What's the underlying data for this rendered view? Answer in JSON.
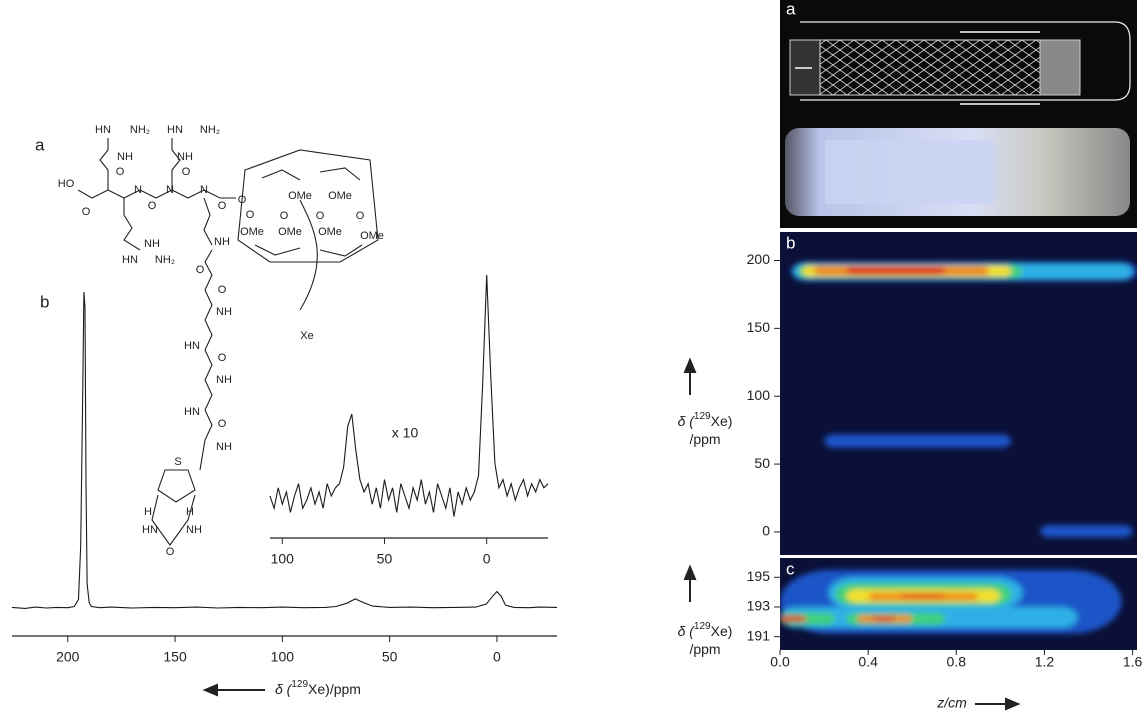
{
  "structure": {
    "panel_label": "a",
    "labels": [
      "HN",
      "NH₂",
      "HN",
      "NH₂",
      "NH",
      "NH",
      "HO",
      "O",
      "O",
      "N",
      "O",
      "N",
      "O",
      "N",
      "O",
      "NH",
      "HN",
      "NH₂",
      "NH",
      "O",
      "O",
      "NH",
      "HN",
      "O",
      "NH",
      "HN",
      "O",
      "NH",
      "S",
      "H",
      "H",
      "HN",
      "NH",
      "O",
      "O",
      "OMe",
      "OMe",
      "O",
      "O",
      "O",
      "O",
      "OMe",
      "OMe",
      "OMe",
      "OMe",
      "Xe"
    ]
  },
  "photo": {
    "panel_label": "a"
  },
  "chart_data": [
    {
      "type": "line",
      "panel_label": "b",
      "color": "#1a1a1a",
      "xlim": [
        226,
        -28
      ],
      "ylim": [
        0,
        100
      ],
      "xticks": [
        200,
        150,
        100,
        50,
        0
      ],
      "xlabel": [
        "δ (",
        "129",
        "Xe)/ppm"
      ],
      "x": [
        226,
        220,
        215,
        210,
        205,
        200,
        197,
        195,
        194,
        193,
        192.5,
        192,
        191.5,
        191,
        190,
        189,
        185,
        180,
        170,
        160,
        150,
        140,
        130,
        120,
        110,
        100,
        90,
        80,
        75,
        70,
        66,
        62,
        58,
        50,
        40,
        30,
        20,
        10,
        5,
        2,
        0,
        -2,
        -4,
        -8,
        -15,
        -20,
        -28
      ],
      "values": [
        0.5,
        0.2,
        0.6,
        0.3,
        0.5,
        0.4,
        0.8,
        3,
        20,
        70,
        100,
        95,
        40,
        8,
        2,
        0.8,
        0.4,
        0.6,
        0.3,
        0.5,
        0.4,
        0.6,
        0.3,
        0.5,
        0.4,
        0.6,
        0.4,
        0.5,
        0.8,
        1.8,
        3.2,
        2,
        0.9,
        0.5,
        0.6,
        0.4,
        0.5,
        0.6,
        1.5,
        4,
        5.5,
        4,
        1.2,
        0.5,
        0.4,
        0.6,
        0.5
      ]
    },
    {
      "type": "line",
      "annotation": "x 10",
      "color": "#1a1a1a",
      "xlim": [
        106,
        -30
      ],
      "ylim": [
        -7.3,
        56.2
      ],
      "xticks": [
        100,
        50,
        0
      ],
      "x": [
        106,
        104,
        102,
        100,
        98,
        96,
        94,
        92,
        90,
        88,
        86,
        84,
        82,
        80,
        78,
        76,
        74,
        72,
        70,
        68,
        66,
        64,
        62,
        60,
        58,
        56,
        54,
        52,
        50,
        48,
        46,
        44,
        42,
        40,
        38,
        36,
        34,
        32,
        30,
        28,
        26,
        24,
        22,
        20,
        18,
        16,
        14,
        12,
        10,
        8,
        6,
        4,
        2,
        0,
        -2,
        -4,
        -6,
        -8,
        -10,
        -12,
        -14,
        -16,
        -18,
        -20,
        -22,
        -24,
        -26,
        -28,
        -30
      ],
      "values": [
        1,
        -2,
        3,
        -1,
        2,
        -3,
        1,
        4,
        -2,
        0,
        3,
        -1,
        2,
        -2,
        4,
        1,
        3,
        4,
        8,
        18,
        21,
        12,
        5,
        2,
        4,
        -1,
        3,
        -2,
        5,
        0,
        3,
        -3,
        4,
        1,
        -2,
        3,
        0,
        5,
        -1,
        2,
        -3,
        4,
        1,
        -2,
        3,
        -4,
        2,
        -1,
        3,
        0,
        2,
        6,
        28,
        55,
        30,
        9,
        3,
        5,
        1,
        4,
        0,
        3,
        5,
        1,
        4,
        2,
        5,
        3,
        4
      ]
    },
    {
      "type": "contour",
      "panel_label": "b",
      "background": "#0b1038",
      "colors": [
        "#1f55c8",
        "#2fb0e6",
        "#3fd07a",
        "#f2e02a",
        "#f08a1a",
        "#e0241b"
      ],
      "xlim": [
        0,
        1.62
      ],
      "ylim": [
        -17,
        221
      ],
      "yticks": [
        0,
        50,
        100,
        150,
        200
      ],
      "ylabel": [
        "δ (",
        "129",
        "Xe)",
        "/ppm"
      ],
      "contours": [
        {
          "z": [
            0.05,
            1.62
          ],
          "ppm": [
            185,
            199
          ],
          "level": 0
        },
        {
          "z": [
            0.06,
            1.6
          ],
          "ppm": [
            186,
            198
          ],
          "level": 1
        },
        {
          "z": [
            0.08,
            1.1
          ],
          "ppm": [
            187,
            197
          ],
          "level": 2
        },
        {
          "z": [
            0.1,
            1.05
          ],
          "ppm": [
            188,
            196.5
          ],
          "level": 3
        },
        {
          "z": [
            0.15,
            0.95
          ],
          "ppm": [
            189,
            196
          ],
          "level": 4
        },
        {
          "z": [
            0.3,
            0.75
          ],
          "ppm": [
            189.5,
            195.5
          ],
          "level": 5
        },
        {
          "z": [
            0.2,
            1.05
          ],
          "ppm": [
            62,
            72
          ],
          "level": 0
        },
        {
          "z": [
            1.18,
            1.6
          ],
          "ppm": [
            -4,
            5
          ],
          "level": 0
        }
      ]
    },
    {
      "type": "contour",
      "panel_label": "c",
      "background": "#0b1038",
      "colors": [
        "#1f55c8",
        "#2fb0e6",
        "#3fd07a",
        "#f2e02a",
        "#f08a1a",
        "#e0241b"
      ],
      "xlim": [
        0,
        1.62
      ],
      "ylim": [
        190.1,
        196.3
      ],
      "yticks": [
        191,
        193,
        195
      ],
      "xticks": [
        {
          "value": 0,
          "label": "0.0"
        },
        0.4,
        0.8,
        1.2,
        1.6
      ],
      "xlabel": "z/cm",
      "ylabel": [
        "δ (",
        "129",
        "Xe)",
        "/ppm"
      ],
      "contours": [
        {
          "z": [
            0,
            1.55
          ],
          "ppm": [
            191.2,
            195.5
          ],
          "level": 0
        },
        {
          "z": [
            0,
            1.35
          ],
          "ppm": [
            191.6,
            193.0
          ],
          "level": 1
        },
        {
          "z": [
            0.22,
            1.1
          ],
          "ppm": [
            192.9,
            195.0
          ],
          "level": 1
        },
        {
          "z": [
            0.25,
            1.05
          ],
          "ppm": [
            193.1,
            194.6
          ],
          "level": 2
        },
        {
          "z": [
            0.3,
            1.0
          ],
          "ppm": [
            193.3,
            194.2
          ],
          "level": 3
        },
        {
          "z": [
            0.4,
            0.9
          ],
          "ppm": [
            193.45,
            193.95
          ],
          "level": 4
        },
        {
          "z": [
            0.55,
            0.75
          ],
          "ppm": [
            193.6,
            193.85
          ],
          "level": 5
        },
        {
          "z": [
            0,
            0.25
          ],
          "ppm": [
            191.8,
            192.6
          ],
          "level": 2
        },
        {
          "z": [
            0,
            0.12
          ],
          "ppm": [
            192.0,
            192.4
          ],
          "level": 5
        },
        {
          "z": [
            0.3,
            0.75
          ],
          "ppm": [
            191.8,
            192.6
          ],
          "level": 2
        },
        {
          "z": [
            0.35,
            0.6
          ],
          "ppm": [
            191.95,
            192.45
          ],
          "level": 4
        },
        {
          "z": [
            0.42,
            0.52
          ],
          "ppm": [
            192.05,
            192.35
          ],
          "level": 5
        }
      ]
    }
  ]
}
